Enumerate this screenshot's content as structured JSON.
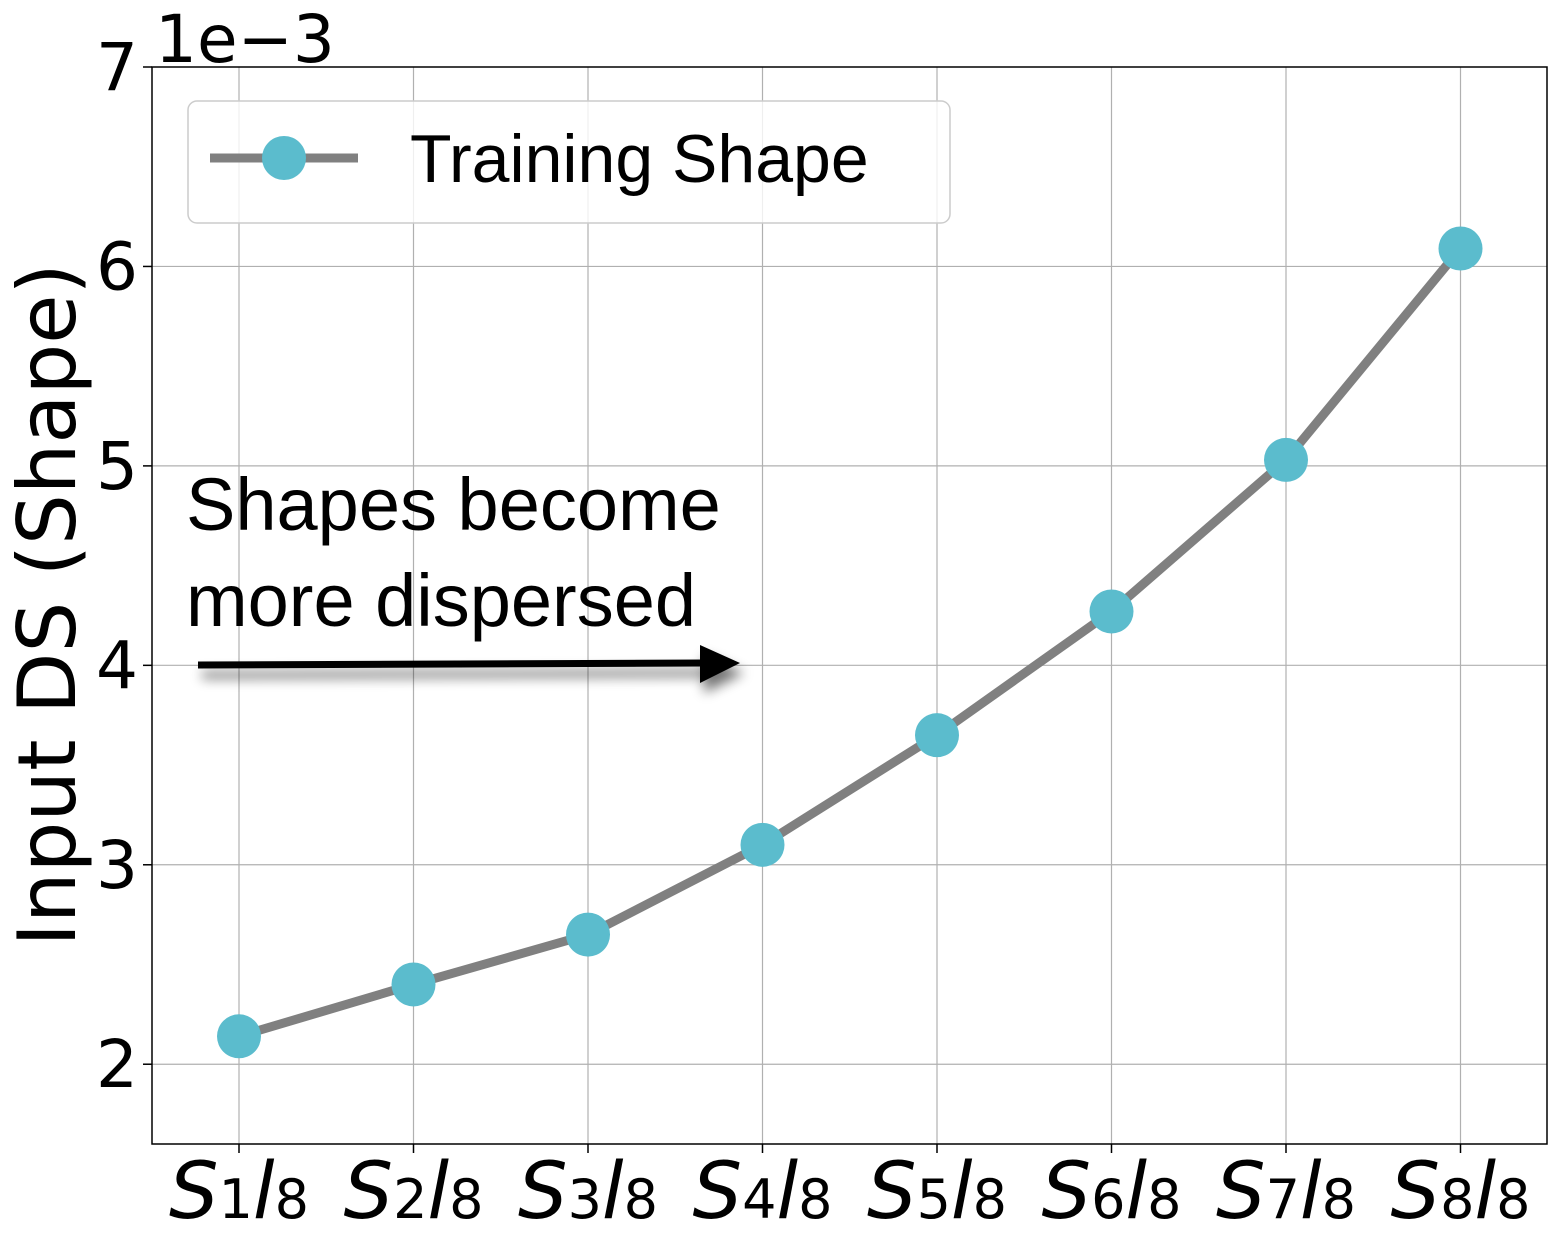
{
  "chart_data": {
    "type": "line",
    "ylabel": "Input DS (Shape)",
    "y_offset_label": "1e−3",
    "ylim": [
      1.6,
      7.0
    ],
    "yticks": [
      2,
      3,
      4,
      5,
      6,
      7
    ],
    "categories": [
      {
        "s": "S",
        "si": "1",
        "l": "l",
        "li": "8"
      },
      {
        "s": "S",
        "si": "2",
        "l": "l",
        "li": "8"
      },
      {
        "s": "S",
        "si": "3",
        "l": "l",
        "li": "8"
      },
      {
        "s": "S",
        "si": "4",
        "l": "l",
        "li": "8"
      },
      {
        "s": "S",
        "si": "5",
        "l": "l",
        "li": "8"
      },
      {
        "s": "S",
        "si": "6",
        "l": "l",
        "li": "8"
      },
      {
        "s": "S",
        "si": "7",
        "l": "l",
        "li": "8"
      },
      {
        "s": "S",
        "si": "8",
        "l": "l",
        "li": "8"
      }
    ],
    "series": [
      {
        "name": "Training Shape",
        "values": [
          2.14,
          2.4,
          2.65,
          3.1,
          3.65,
          4.27,
          5.03,
          6.09
        ],
        "line_color": "#808080",
        "marker_color": "#5bbccd"
      }
    ],
    "grid": true,
    "legend": {
      "position": "top-left",
      "label": "Training Shape"
    },
    "annotation": {
      "lines": [
        "Shapes become",
        "more dispersed"
      ],
      "arrow": "right"
    }
  }
}
